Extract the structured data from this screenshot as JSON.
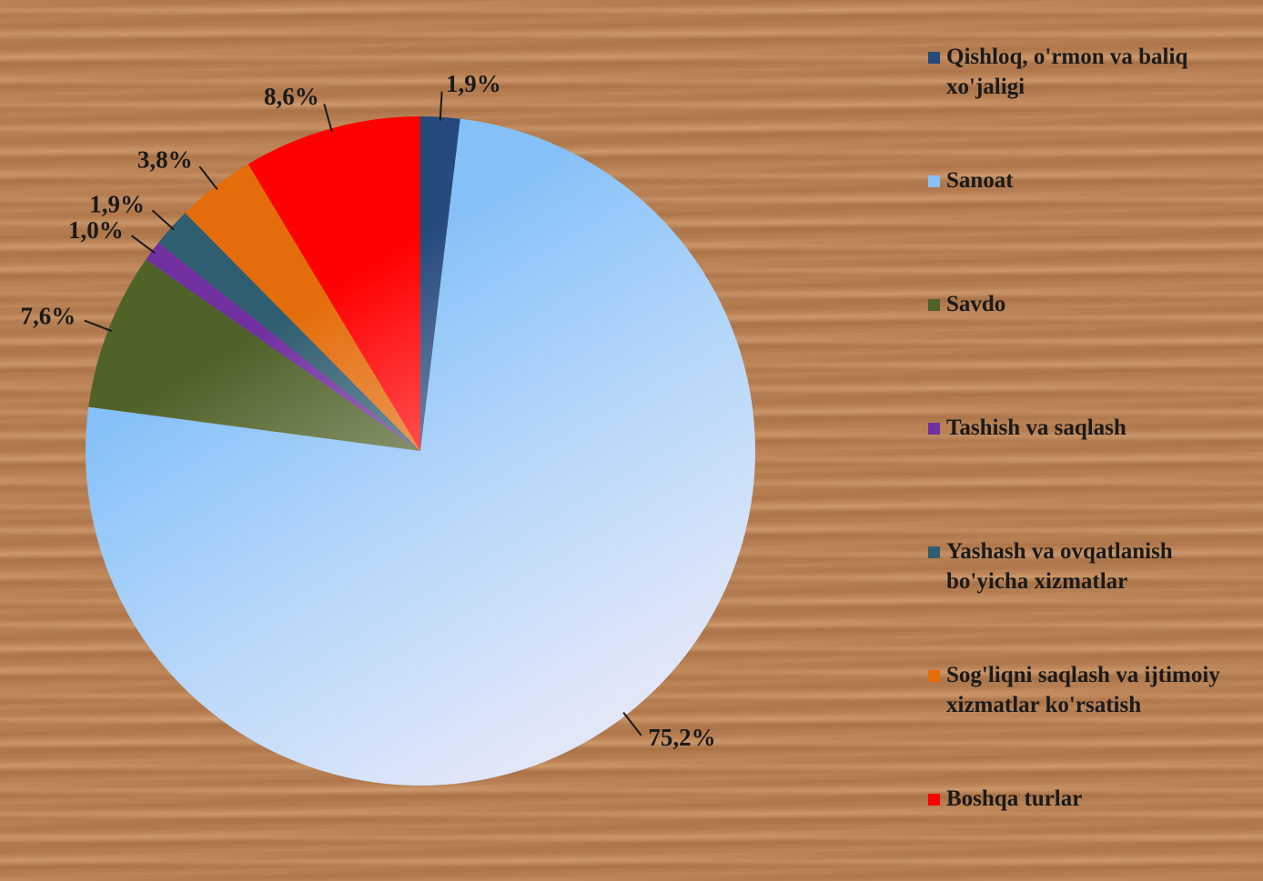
{
  "chart_data": {
    "type": "pie",
    "categories": [
      "Qishloq, o'rmon va baliq xo'jaligi",
      "Sanoat",
      "Savdo",
      "Tashish va saqlash",
      "Yashash va ovqatlanish bo'yicha xizmatlar",
      "Sog'liqni saqlash va ijtimoiy xizmatlar ko'rsatish",
      "Boshqa turlar"
    ],
    "values": [
      1.9,
      75.2,
      7.6,
      1.0,
      1.9,
      3.8,
      8.6
    ],
    "value_labels": [
      "1,9%",
      "75,2%",
      "7,6%",
      "1,0%",
      "1,9%",
      "3,8%",
      "8,6%"
    ],
    "colors": [
      "#254a7c",
      "#86c0f8",
      "#4f6228",
      "#7030a0",
      "#2f5e70",
      "#e46c0a",
      "#ff0000"
    ]
  }
}
